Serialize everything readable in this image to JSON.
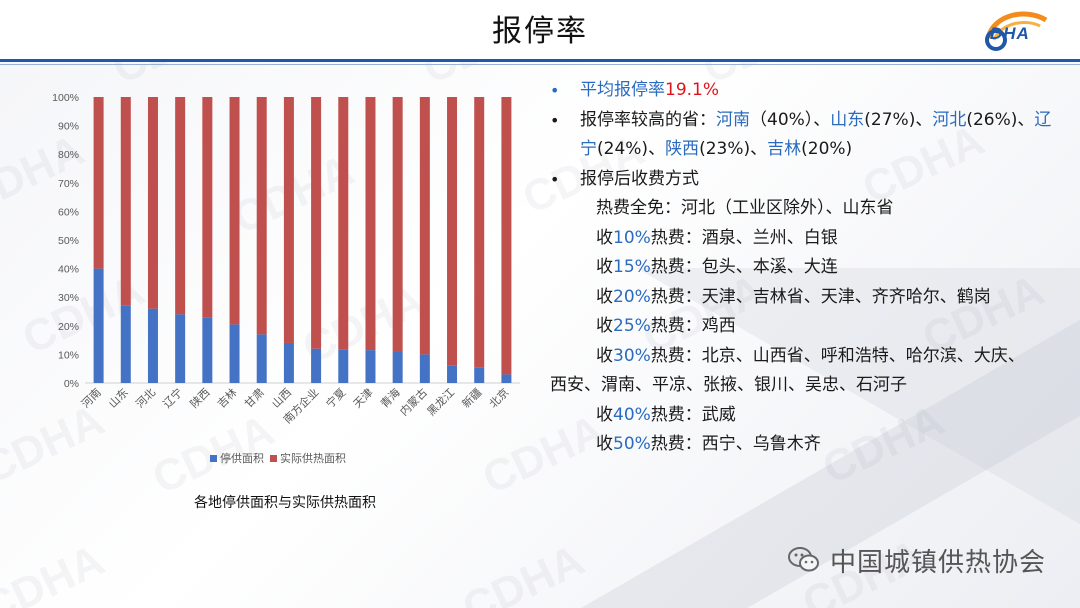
{
  "page": {
    "title": "报停率",
    "logo_text": "DHA",
    "watermark": "CDHA",
    "colors": {
      "accent": "#1f57a9",
      "highlight_blue": "#2a6bc0",
      "highlight_red": "#e0121b"
    }
  },
  "chart_caption": "各地停供面积与实际供热面积",
  "chart_data": {
    "type": "bar",
    "stacked": true,
    "percent": true,
    "categories": [
      "河南",
      "山东",
      "河北",
      "辽宁",
      "陕西",
      "吉林",
      "甘肃",
      "山西",
      "南方企业",
      "宁夏",
      "天津",
      "青海",
      "内蒙古",
      "黑龙江",
      "新疆",
      "北京"
    ],
    "series": [
      {
        "name": "停供面积",
        "color": "#4472c4",
        "values": [
          40,
          27,
          26,
          24,
          23,
          20.5,
          17,
          14,
          12,
          11.8,
          11.5,
          11,
          10,
          6,
          5.5,
          3
        ]
      },
      {
        "name": "实际供热面积",
        "color": "#c0504d",
        "values": [
          60,
          73,
          74,
          76,
          77,
          79.5,
          83,
          86,
          88,
          88.2,
          88.5,
          89,
          90,
          94,
          94.5,
          97
        ]
      }
    ],
    "y_ticks": [
      "0%",
      "10%",
      "20%",
      "30%",
      "40%",
      "50%",
      "60%",
      "70%",
      "80%",
      "90%",
      "100%"
    ],
    "ylim": [
      0,
      100
    ],
    "grid": false,
    "legend": "bottom"
  },
  "right": {
    "b1": {
      "bullet": "•",
      "label": "平均报停率",
      "value": "19.1%"
    },
    "b2": {
      "bullet": "•",
      "prefix": "报停率较高的省：",
      "items": [
        {
          "name": "河南",
          "pct": "（40%）",
          "sep": "、"
        },
        {
          "name": "山东",
          "pct": "(27%)",
          "sep": "、"
        },
        {
          "name": "河北",
          "pct": "(26%)",
          "sep": "、"
        },
        {
          "name": "辽宁",
          "pct": "(24%)",
          "sep": "、"
        },
        {
          "name": "陕西",
          "pct": "(23%)",
          "sep": "、"
        },
        {
          "name": "吉林",
          "pct": "(20%)",
          "sep": ""
        }
      ]
    },
    "b3": {
      "bullet": "•",
      "label": "报停后收费方式"
    },
    "free": "热费全免：河北（工业区除外）、山东省",
    "fees": [
      {
        "pre": "收",
        "pct": "10%",
        "post": "热费：酒泉、兰州、白银"
      },
      {
        "pre": "收",
        "pct": "15%",
        "post": "热费：包头、本溪、大连"
      },
      {
        "pre": "收",
        "pct": "20%",
        "post": "热费：天津、吉林省、天津、齐齐哈尔、鹤岗"
      },
      {
        "pre": "收",
        "pct": "25%",
        "post": "热费：鸡西"
      },
      {
        "pre": "收",
        "pct": "30%",
        "post": "热费：北京、山西省、呼和浩特、哈尔滨、大庆、"
      },
      {
        "pre": "收",
        "pct": "40%",
        "post": "热费：武威"
      },
      {
        "pre": "收",
        "pct": "50%",
        "post": "热费：西宁、乌鲁木齐"
      }
    ],
    "fee30_cont": "西安、渭南、平凉、张掖、银川、吴忠、石河子"
  },
  "footer": {
    "text": "中国城镇供热协会",
    "icon": "wechat-icon"
  }
}
